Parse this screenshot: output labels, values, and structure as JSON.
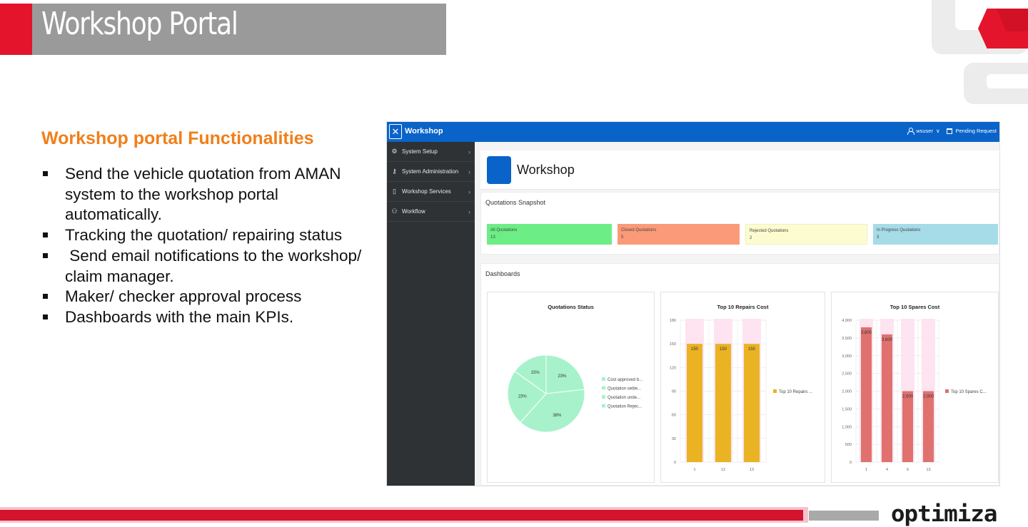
{
  "slide": {
    "title": "Workshop Portal",
    "heading": "Workshop portal Functionalities",
    "bullets": [
      "Send the vehicle quotation from AMAN system to the workshop portal automatically.",
      "Tracking the quotation/ repairing status",
      " Send email notifications to the workshop/ claim manager.",
      "Maker/ checker approval process",
      "Dashboards with the main KPIs."
    ],
    "logo_text": "optimiza"
  },
  "colors": {
    "brand_red": "#e3142b",
    "heading_orange": "#f07f1a",
    "app_blue": "#0a63c8",
    "sidebar_dark": "#2e3235"
  },
  "app": {
    "header": {
      "toggle_glyph": "✕",
      "app_name": "Workshop",
      "user": "wsuser",
      "user_chevron": "∨",
      "pending": "Pending Request"
    },
    "sidebar": [
      {
        "label": "System Setup",
        "icon": "gear-icon",
        "glyph": "⚙"
      },
      {
        "label": "System Administration",
        "icon": "user-key-icon",
        "glyph": "⚷"
      },
      {
        "label": "Workshop Services",
        "icon": "document-icon",
        "glyph": "▯"
      },
      {
        "label": "Workflow",
        "icon": "workflow-icon",
        "glyph": "⚇"
      }
    ],
    "page_title": "Workshop",
    "snapshot": {
      "title": "Quotations Snapshot",
      "cards": [
        {
          "label": "All Quotations",
          "value": "13",
          "color": "#6ded86"
        },
        {
          "label": "Closed Quotations",
          "value": "5",
          "color": "#fb9a78"
        },
        {
          "label": "Rejected Quotations",
          "value": "2",
          "color": "#fdfcd0"
        },
        {
          "label": "In Progress Quotations",
          "value": "3",
          "color": "#a6dbe8"
        }
      ]
    },
    "dashboards_title": "Dashboards"
  },
  "chart_data": [
    {
      "type": "pie",
      "title": "Quotations Status",
      "labels": [
        "Cost approved b...",
        "Quotation settle...",
        "Quotation unde...",
        "Quotation Rejec..."
      ],
      "values": [
        23,
        38,
        23,
        15
      ],
      "value_labels": [
        "23%",
        "38%",
        "23%",
        "15%"
      ],
      "color": "#a7f2cb",
      "legend_position": "right"
    },
    {
      "type": "bar",
      "title": "Top 10 Repairs Cost",
      "categories": [
        "1",
        "12",
        "13"
      ],
      "series": [
        {
          "name": "Top 10 Repairs ...",
          "values": [
            150,
            150,
            150
          ]
        }
      ],
      "value_labels": [
        "150",
        "150",
        "150"
      ],
      "yticks": [
        "0",
        "30",
        "60",
        "90",
        "120",
        "150",
        "180"
      ],
      "ylim": [
        0,
        180
      ],
      "color": "#eab323",
      "grid": true,
      "legend_position": "right"
    },
    {
      "type": "bar",
      "title": "Top 10 Spares Cost",
      "categories": [
        "1",
        "4",
        "6",
        "13"
      ],
      "series": [
        {
          "name": "Top 10 Spares C...",
          "values": [
            3800,
            3600,
            2000,
            2000
          ]
        }
      ],
      "value_labels": [
        "3,800",
        "3,600",
        "2,000",
        "2,000"
      ],
      "yticks": [
        "0",
        "500",
        "1,000",
        "1,500",
        "2,000",
        "2,500",
        "3,000",
        "3,500",
        "4,000"
      ],
      "ylim": [
        0,
        4000
      ],
      "color": "#e0716f",
      "grid": true,
      "legend_position": "right"
    }
  ]
}
